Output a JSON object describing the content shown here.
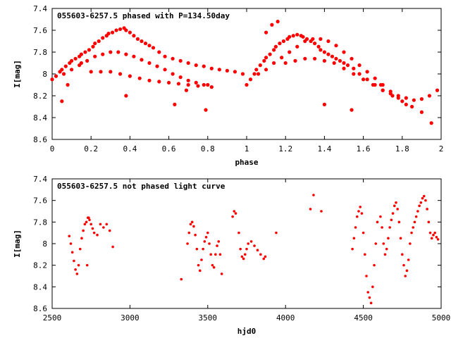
{
  "chart_data": [
    {
      "type": "scatter",
      "title": "055603-6257.5 phased with P=134.50day",
      "xlabel": "phase",
      "ylabel": "I[mag]",
      "xlim": [
        0,
        2
      ],
      "ylim": [
        7.4,
        8.6
      ],
      "y_inverted": true,
      "xticks": [
        0,
        0.2,
        0.4,
        0.6,
        0.8,
        1,
        1.2,
        1.4,
        1.6,
        1.8,
        2
      ],
      "xtick_labels": [
        "0",
        "0.2",
        "0.4",
        "0.6",
        "0.8",
        "1",
        "1.2",
        "1.4",
        "1.6",
        "1.8",
        "2"
      ],
      "yticks": [
        7.4,
        7.6,
        7.8,
        8,
        8.2,
        8.4,
        8.6
      ],
      "ytick_labels": [
        "7.4",
        "7.6",
        "7.8",
        "8",
        "8.2",
        "8.4",
        "8.6"
      ],
      "grid": false,
      "marker_color": "#ff0000",
      "x": [
        0.0,
        0.02,
        0.04,
        0.05,
        0.07,
        0.09,
        0.1,
        0.12,
        0.14,
        0.15,
        0.17,
        0.19,
        0.21,
        0.22,
        0.24,
        0.26,
        0.28,
        0.29,
        0.31,
        0.33,
        0.35,
        0.37,
        0.38,
        0.4,
        0.42,
        0.44,
        0.46,
        0.48,
        0.5,
        0.52,
        0.55,
        0.58,
        0.62,
        0.66,
        0.7,
        0.74,
        0.78,
        0.82,
        0.86,
        0.9,
        0.94,
        0.98,
        0.06,
        0.1,
        0.14,
        0.18,
        0.22,
        0.26,
        0.3,
        0.34,
        0.38,
        0.42,
        0.46,
        0.5,
        0.54,
        0.58,
        0.62,
        0.66,
        0.7,
        0.74,
        0.78,
        0.82,
        0.2,
        0.25,
        0.3,
        0.35,
        0.4,
        0.45,
        0.5,
        0.55,
        0.6,
        0.65,
        0.7,
        0.75,
        0.8,
        0.05,
        0.08,
        0.15,
        0.38,
        0.63,
        0.69,
        0.79,
        1.0,
        1.02,
        1.04,
        1.05,
        1.07,
        1.09,
        1.1,
        1.12,
        1.14,
        1.15,
        1.17,
        1.19,
        1.21,
        1.22,
        1.24,
        1.26,
        1.28,
        1.29,
        1.31,
        1.33,
        1.35,
        1.37,
        1.38,
        1.4,
        1.42,
        1.44,
        1.46,
        1.48,
        1.5,
        1.52,
        1.55,
        1.58,
        1.62,
        1.66,
        1.7,
        1.74,
        1.78,
        1.82,
        1.86,
        1.9,
        1.94,
        1.98,
        1.06,
        1.1,
        1.14,
        1.18,
        1.22,
        1.26,
        1.3,
        1.34,
        1.38,
        1.42,
        1.46,
        1.5,
        1.54,
        1.58,
        1.62,
        1.66,
        1.7,
        1.74,
        1.78,
        1.82,
        1.2,
        1.25,
        1.3,
        1.35,
        1.4,
        1.45,
        1.5,
        1.55,
        1.6,
        1.65,
        1.7,
        1.75,
        1.8,
        1.85,
        1.9,
        1.95,
        1.4,
        1.54,
        1.69,
        1.13,
        1.16,
        1.1
      ],
      "y": [
        8.05,
        8.02,
        7.98,
        7.96,
        7.93,
        7.9,
        7.88,
        7.86,
        7.84,
        7.82,
        7.8,
        7.78,
        7.75,
        7.72,
        7.7,
        7.67,
        7.65,
        7.63,
        7.62,
        7.6,
        7.59,
        7.58,
        7.6,
        7.62,
        7.65,
        7.68,
        7.7,
        7.72,
        7.74,
        7.76,
        7.8,
        7.84,
        7.86,
        7.88,
        7.9,
        7.92,
        7.93,
        7.95,
        7.96,
        7.97,
        7.98,
        8.0,
        8.0,
        7.96,
        7.92,
        7.88,
        7.84,
        7.82,
        7.8,
        7.8,
        7.82,
        7.84,
        7.87,
        7.9,
        7.93,
        7.96,
        8.0,
        8.03,
        8.06,
        8.08,
        8.1,
        8.12,
        7.98,
        7.98,
        7.98,
        8.0,
        8.02,
        8.04,
        8.06,
        8.07,
        8.08,
        8.09,
        8.1,
        8.11,
        8.1,
        8.25,
        8.1,
        7.9,
        8.2,
        8.28,
        8.15,
        8.33,
        8.1,
        8.05,
        8.0,
        7.96,
        7.92,
        7.88,
        7.85,
        7.82,
        7.78,
        7.75,
        7.72,
        7.7,
        7.68,
        7.66,
        7.65,
        7.64,
        7.65,
        7.66,
        7.68,
        7.7,
        7.72,
        7.75,
        7.78,
        7.8,
        7.82,
        7.84,
        7.86,
        7.88,
        7.9,
        7.92,
        7.95,
        8.0,
        8.05,
        8.1,
        8.15,
        8.18,
        8.2,
        8.22,
        8.24,
        8.23,
        8.2,
        8.15,
        8.0,
        7.96,
        7.9,
        7.85,
        7.8,
        7.75,
        7.7,
        7.68,
        7.68,
        7.7,
        7.74,
        7.8,
        7.86,
        7.92,
        7.98,
        8.04,
        8.1,
        8.16,
        8.22,
        8.28,
        7.9,
        7.88,
        7.86,
        7.86,
        7.88,
        7.9,
        7.95,
        8.0,
        8.05,
        8.1,
        8.15,
        8.2,
        8.25,
        8.3,
        8.35,
        8.45,
        8.28,
        8.33,
        8.1,
        7.55,
        7.52,
        7.62
      ]
    },
    {
      "type": "scatter",
      "title": "055603-6257.5 not phased light curve",
      "xlabel": "hjd0",
      "ylabel": "I[mag]",
      "xlim": [
        2500,
        5000
      ],
      "ylim": [
        7.4,
        8.6
      ],
      "y_inverted": true,
      "xticks": [
        2500,
        3000,
        3500,
        4000,
        4500,
        5000
      ],
      "xtick_labels": [
        "2500",
        "3000",
        "3500",
        "4000",
        "4500",
        "5000"
      ],
      "yticks": [
        7.4,
        7.6,
        7.8,
        8,
        8.2,
        8.4,
        8.6
      ],
      "ytick_labels": [
        "7.4",
        "7.6",
        "7.8",
        "8",
        "8.2",
        "8.4",
        "8.6"
      ],
      "grid": false,
      "marker_color": "#ff0000",
      "x": [
        2610,
        2620,
        2630,
        2640,
        2650,
        2660,
        2670,
        2680,
        2690,
        2700,
        2710,
        2720,
        2730,
        2740,
        2750,
        2760,
        2770,
        2790,
        2810,
        2830,
        2850,
        2870,
        2890,
        2725,
        2735,
        3330,
        3370,
        3380,
        3390,
        3400,
        3410,
        3420,
        3430,
        3440,
        3450,
        3460,
        3470,
        3480,
        3490,
        3500,
        3510,
        3520,
        3530,
        3540,
        3550,
        3560,
        3570,
        3580,
        3590,
        3660,
        3670,
        3680,
        3700,
        3710,
        3720,
        3730,
        3740,
        3750,
        3760,
        3780,
        3800,
        3820,
        3840,
        3860,
        3870,
        3940,
        4160,
        4180,
        4230,
        4430,
        4440,
        4450,
        4460,
        4470,
        4480,
        4490,
        4500,
        4510,
        4520,
        4530,
        4540,
        4550,
        4560,
        4570,
        4580,
        4590,
        4610,
        4620,
        4630,
        4640,
        4650,
        4660,
        4670,
        4680,
        4690,
        4700,
        4710,
        4720,
        4730,
        4740,
        4750,
        4760,
        4770,
        4780,
        4790,
        4800,
        4810,
        4820,
        4830,
        4840,
        4850,
        4860,
        4870,
        4880,
        4890,
        4900,
        4910,
        4920,
        4930,
        4940,
        4950,
        4960,
        4970,
        4980
      ],
      "y": [
        7.93,
        8.0,
        8.08,
        8.16,
        8.24,
        8.28,
        8.2,
        8.05,
        7.95,
        7.88,
        7.82,
        7.8,
        7.76,
        7.78,
        7.82,
        7.86,
        7.9,
        7.92,
        7.82,
        7.85,
        7.82,
        7.88,
        8.03,
        8.2,
        7.76,
        8.33,
        8.0,
        7.9,
        7.82,
        7.8,
        7.84,
        7.92,
        8.05,
        8.2,
        8.25,
        8.15,
        8.05,
        7.98,
        7.94,
        7.9,
        8.0,
        8.1,
        8.2,
        8.22,
        8.1,
        8.02,
        7.98,
        8.1,
        8.28,
        7.75,
        7.7,
        7.72,
        7.9,
        8.05,
        8.12,
        8.14,
        8.1,
        8.05,
        8.0,
        7.98,
        8.02,
        8.06,
        8.1,
        8.14,
        8.12,
        7.9,
        7.68,
        7.55,
        7.7,
        8.05,
        7.95,
        7.85,
        7.75,
        7.7,
        7.66,
        7.72,
        7.9,
        8.1,
        8.3,
        8.45,
        8.5,
        8.55,
        8.4,
        8.2,
        8.0,
        7.8,
        7.75,
        7.85,
        8.0,
        8.1,
        8.05,
        7.95,
        7.85,
        7.78,
        7.72,
        7.65,
        7.62,
        7.68,
        7.8,
        7.95,
        8.1,
        8.2,
        8.3,
        8.25,
        8.15,
        8.0,
        7.9,
        7.85,
        7.8,
        7.75,
        7.7,
        7.65,
        7.62,
        7.58,
        7.56,
        7.6,
        7.68,
        7.8,
        7.9,
        7.95,
        7.92,
        7.9,
        7.94,
        7.96
      ]
    }
  ]
}
